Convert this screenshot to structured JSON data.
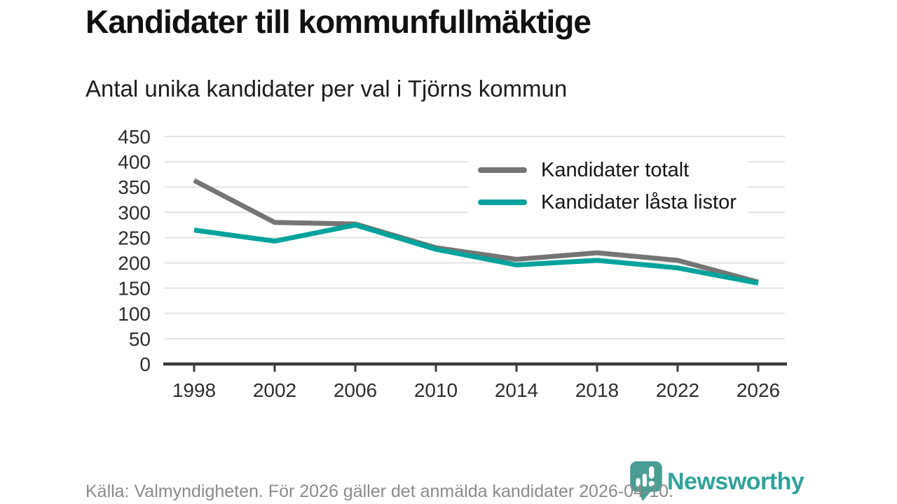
{
  "page": {
    "title": "Kandidater till kommunfullmäktige",
    "subtitle": "Antal unika kandidater per val i Tjörns kommun",
    "footer": "Källa: Valmyndigheten. För 2026 gäller det anmälda kandidater 2026-04-10.",
    "brand": "Newsworthy"
  },
  "colors": {
    "total_line": "#757575",
    "locked_line": "#00a39b",
    "grid": "#e3e3e3",
    "axis": "#3a3a3a",
    "tick_text": "#2d2d2d",
    "title_text": "#111111",
    "footer_text": "#8b8b8b",
    "logo_icon": "#4a9d93",
    "logo_text": "#2fa39b",
    "legend_background": "#ffffff"
  },
  "chart_data": {
    "type": "line",
    "title": "Kandidater till kommunfullmäktige",
    "subtitle": "Antal unika kandidater per val i Tjörns kommun",
    "categories": [
      "1998",
      "2002",
      "2006",
      "2010",
      "2014",
      "2018",
      "2022",
      "2026"
    ],
    "series": [
      {
        "name": "Kandidater totalt",
        "color": "#757575",
        "values": [
          363,
          280,
          277,
          230,
          207,
          220,
          205,
          162
        ]
      },
      {
        "name": "Kandidater låsta listor",
        "color": "#00a39b",
        "values": [
          265,
          243,
          275,
          227,
          196,
          205,
          190,
          160
        ]
      }
    ],
    "ylim": [
      0,
      450
    ],
    "yticks": [
      0,
      50,
      100,
      150,
      200,
      250,
      300,
      350,
      400,
      450
    ],
    "xlabel": "",
    "ylabel": "",
    "grid": "horizontal",
    "legend_position": "top-right"
  }
}
